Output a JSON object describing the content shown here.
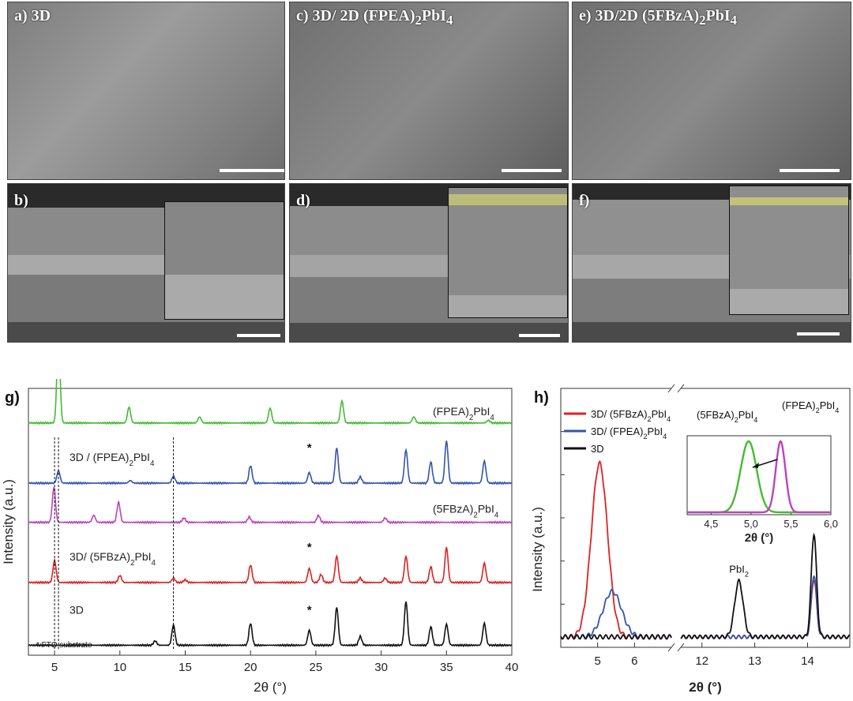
{
  "sem_panels": {
    "a": {
      "label": "a) 3D"
    },
    "c": {
      "label": "c) 3D/ 2D (FPEA)",
      "sub": "2",
      "tail": "PbI",
      "sub2": "4"
    },
    "e": {
      "label": "e) 3D/2D (5FBzA)",
      "sub": "2",
      "tail": "PbI",
      "sub2": "4"
    },
    "b": {
      "label": "b)"
    },
    "d": {
      "label": "d)"
    },
    "f": {
      "label": "f)"
    }
  },
  "chart_data": [
    {
      "id": "g",
      "type": "line",
      "panel_label": "g)",
      "xlabel": "2θ (°)",
      "ylabel": "Intensity (a.u.)",
      "xlim": [
        3,
        40
      ],
      "xticks": [
        5,
        10,
        15,
        20,
        25,
        30,
        35,
        40
      ],
      "footnote": "* FTO substrate",
      "series": [
        {
          "name": "(FPEA)2PbI4",
          "color": "#44bb33",
          "offset": 0.87,
          "peaks": [
            [
              5.3,
              1.0
            ],
            [
              10.7,
              0.18
            ],
            [
              16.1,
              0.07
            ],
            [
              21.5,
              0.17
            ],
            [
              27.0,
              0.25
            ],
            [
              32.5,
              0.07
            ],
            [
              38.2,
              0.03
            ]
          ]
        },
        {
          "name": "3D / (FPEA)2PbI4",
          "color": "#3355aa",
          "offset": 0.64,
          "peaks": [
            [
              5.3,
              0.14
            ],
            [
              10.8,
              0.03
            ],
            [
              14.1,
              0.08
            ],
            [
              20.0,
              0.2
            ],
            [
              24.5,
              0.12
            ],
            [
              26.6,
              0.4
            ],
            [
              28.4,
              0.07
            ],
            [
              31.9,
              0.38
            ],
            [
              33.8,
              0.24
            ],
            [
              35.0,
              0.48
            ],
            [
              37.9,
              0.25
            ]
          ]
        },
        {
          "name": "(5FBzA)2PbI4",
          "color": "#bb44bb",
          "offset": 0.49,
          "peaks": [
            [
              4.95,
              0.4
            ],
            [
              8.0,
              0.08
            ],
            [
              9.9,
              0.23
            ],
            [
              14.9,
              0.05
            ],
            [
              19.9,
              0.06
            ],
            [
              25.2,
              0.08
            ],
            [
              30.3,
              0.05
            ]
          ]
        },
        {
          "name": "3D/ (5FBzA)2PbI4",
          "color": "#dd2222",
          "offset": 0.26,
          "peaks": [
            [
              5.0,
              0.25
            ],
            [
              10.0,
              0.08
            ],
            [
              14.1,
              0.05
            ],
            [
              15.0,
              0.03
            ],
            [
              20.0,
              0.2
            ],
            [
              24.5,
              0.16
            ],
            [
              25.4,
              0.09
            ],
            [
              26.6,
              0.3
            ],
            [
              28.4,
              0.05
            ],
            [
              30.3,
              0.05
            ],
            [
              31.9,
              0.3
            ],
            [
              33.8,
              0.18
            ],
            [
              35.0,
              0.4
            ],
            [
              37.9,
              0.22
            ]
          ]
        },
        {
          "name": "3D",
          "color": "#111111",
          "offset": 0.02,
          "peaks": [
            [
              12.7,
              0.05
            ],
            [
              14.1,
              0.23
            ],
            [
              20.0,
              0.25
            ],
            [
              24.5,
              0.17
            ],
            [
              26.6,
              0.43
            ],
            [
              28.4,
              0.1
            ],
            [
              31.9,
              0.5
            ],
            [
              33.8,
              0.21
            ],
            [
              35.0,
              0.24
            ],
            [
              37.9,
              0.25
            ]
          ]
        }
      ],
      "annotations": [
        {
          "text": "*",
          "x": 24.5,
          "series": "3D"
        },
        {
          "text": "*",
          "x": 24.5,
          "series": "3D/ (5FBzA)2PbI4"
        },
        {
          "text": "*",
          "x": 24.5,
          "series": "3D / (FPEA)2PbI4"
        }
      ],
      "reference_lines_x": [
        5.3,
        5.0,
        14.1
      ]
    },
    {
      "id": "h",
      "type": "line",
      "panel_label": "h)",
      "xlabel": "2θ (°)",
      "ylabel": "Intensity (a.u.)",
      "broken_x_axis": true,
      "left_xlim": [
        4,
        7
      ],
      "left_xticks": [
        5,
        6
      ],
      "right_xlim": [
        11.6,
        14.8
      ],
      "right_xticks": [
        12,
        13,
        14
      ],
      "legend": [
        "3D/ (5FBzA)2PbI4",
        "3D/ (FPEA)2PbI4",
        "3D"
      ],
      "annotation": "PbI2",
      "series": [
        {
          "name": "3D/ (5FBzA)2PbI4",
          "color": "#dd2222",
          "peaks": [
            [
              5.05,
              0.84,
              0.22
            ]
          ],
          "right_peaks": [
            [
              14.12,
              0.28,
              0.05
            ]
          ]
        },
        {
          "name": "3D/ (FPEA)2PbI4",
          "color": "#3355aa",
          "peaks": [
            [
              5.4,
              0.22,
              0.25
            ]
          ],
          "right_peaks": [
            [
              14.12,
              0.3,
              0.05
            ]
          ]
        },
        {
          "name": "3D",
          "color": "#111111",
          "peaks": [],
          "right_peaks": [
            [
              12.7,
              0.27,
              0.08
            ],
            [
              14.12,
              0.5,
              0.05
            ]
          ]
        }
      ],
      "inset": {
        "xlim": [
          4.2,
          6.0
        ],
        "xticks": [
          "4,5",
          "5,0",
          "5,5",
          "6,0"
        ],
        "xlabel": "2θ (°)",
        "series": [
          {
            "name": "(5FBzA)2PbI4",
            "color": "#44bb33",
            "peak": 4.97,
            "width": 0.1
          },
          {
            "name": "(FPEA)2PbI4",
            "color": "#bb44bb",
            "peak": 5.37,
            "width": 0.06
          }
        ]
      }
    }
  ]
}
